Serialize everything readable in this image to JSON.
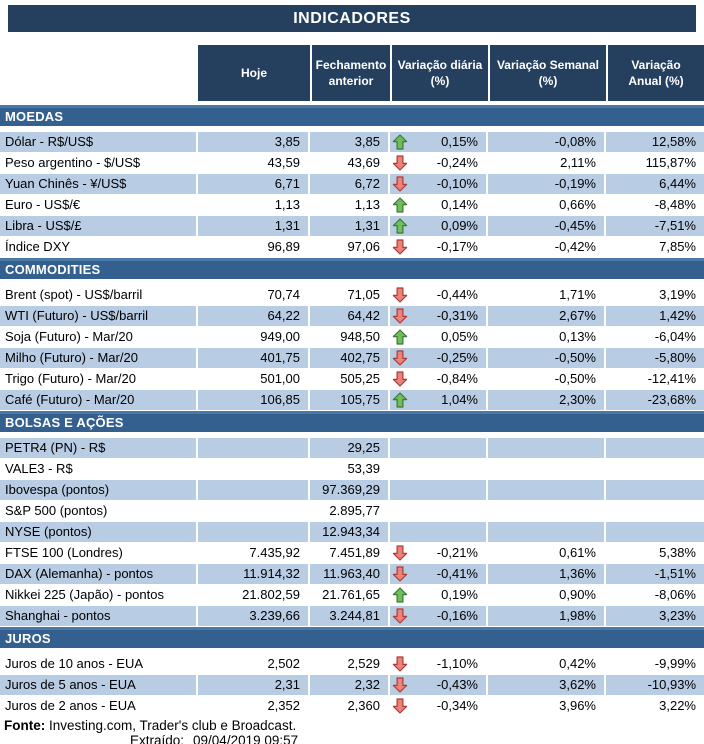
{
  "title": "INDICADORES",
  "columns": [
    "Hoje",
    "Fechamento anterior",
    "Variação diária (%)",
    "Variação Semanal (%)",
    "Variação Anual (%)"
  ],
  "sections": [
    {
      "name": "MOEDAS",
      "shaded_first": true,
      "rows": [
        {
          "label": "Dólar - R$/US$",
          "hoje": "3,85",
          "fechamento": "3,85",
          "arrow": "up",
          "diaria": "0,15%",
          "semanal": "-0,08%",
          "anual": "12,58%"
        },
        {
          "label": "Peso argentino - $/US$",
          "hoje": "43,59",
          "fechamento": "43,69",
          "arrow": "down",
          "diaria": "-0,24%",
          "semanal": "2,11%",
          "anual": "115,87%"
        },
        {
          "label": "Yuan Chinês - ¥/US$",
          "hoje": "6,71",
          "fechamento": "6,72",
          "arrow": "down",
          "diaria": "-0,10%",
          "semanal": "-0,19%",
          "anual": "6,44%"
        },
        {
          "label": "Euro - US$/€",
          "hoje": "1,13",
          "fechamento": "1,13",
          "arrow": "up",
          "diaria": "0,14%",
          "semanal": "0,66%",
          "anual": "-8,48%"
        },
        {
          "label": "Libra - US$/£",
          "hoje": "1,31",
          "fechamento": "1,31",
          "arrow": "up",
          "diaria": "0,09%",
          "semanal": "-0,45%",
          "anual": "-7,51%"
        },
        {
          "label": "Índice DXY",
          "hoje": "96,89",
          "fechamento": "97,06",
          "arrow": "down",
          "diaria": "-0,17%",
          "semanal": "-0,42%",
          "anual": "7,85%"
        }
      ]
    },
    {
      "name": "COMMODITIES",
      "shaded_first": false,
      "rows": [
        {
          "label": "Brent (spot) - US$/barril",
          "hoje": "70,74",
          "fechamento": "71,05",
          "arrow": "down",
          "diaria": "-0,44%",
          "semanal": "1,71%",
          "anual": "3,19%"
        },
        {
          "label": "WTI (Futuro) - US$/barril",
          "hoje": "64,22",
          "fechamento": "64,42",
          "arrow": "down",
          "diaria": "-0,31%",
          "semanal": "2,67%",
          "anual": "1,42%"
        },
        {
          "label": "Soja (Futuro) - Mar/20",
          "hoje": "949,00",
          "fechamento": "948,50",
          "arrow": "up",
          "diaria": "0,05%",
          "semanal": "0,13%",
          "anual": "-6,04%"
        },
        {
          "label": "Milho (Futuro) - Mar/20",
          "hoje": "401,75",
          "fechamento": "402,75",
          "arrow": "down",
          "diaria": "-0,25%",
          "semanal": "-0,50%",
          "anual": "-5,80%"
        },
        {
          "label": "Trigo (Futuro) - Mar/20",
          "hoje": "501,00",
          "fechamento": "505,25",
          "arrow": "down",
          "diaria": "-0,84%",
          "semanal": "-0,50%",
          "anual": "-12,41%"
        },
        {
          "label": "Café (Futuro) - Mar/20",
          "hoje": "106,85",
          "fechamento": "105,75",
          "arrow": "up",
          "diaria": "1,04%",
          "semanal": "2,30%",
          "anual": "-23,68%"
        }
      ]
    },
    {
      "name": "BOLSAS E AÇÕES",
      "shaded_first": true,
      "rows": [
        {
          "label": "PETR4 (PN) - R$",
          "hoje": "",
          "fechamento": "29,25",
          "arrow": null,
          "diaria": "",
          "semanal": "",
          "anual": ""
        },
        {
          "label": "VALE3 - R$",
          "hoje": "",
          "fechamento": "53,39",
          "arrow": null,
          "diaria": "",
          "semanal": "",
          "anual": ""
        },
        {
          "label": "Ibovespa (pontos)",
          "hoje": "",
          "fechamento": "97.369,29",
          "arrow": null,
          "diaria": "",
          "semanal": "",
          "anual": ""
        },
        {
          "label": "S&P 500 (pontos)",
          "hoje": "",
          "fechamento": "2.895,77",
          "arrow": null,
          "diaria": "",
          "semanal": "",
          "anual": ""
        },
        {
          "label": "NYSE (pontos)",
          "hoje": "",
          "fechamento": "12.943,34",
          "arrow": null,
          "diaria": "",
          "semanal": "",
          "anual": ""
        },
        {
          "label": "FTSE 100 (Londres)",
          "hoje": "7.435,92",
          "fechamento": "7.451,89",
          "arrow": "down",
          "diaria": "-0,21%",
          "semanal": "0,61%",
          "anual": "5,38%"
        },
        {
          "label": "DAX (Alemanha) - pontos",
          "hoje": "11.914,32",
          "fechamento": "11.963,40",
          "arrow": "down",
          "diaria": "-0,41%",
          "semanal": "1,36%",
          "anual": "-1,51%"
        },
        {
          "label": "Nikkei 225 (Japão) - pontos",
          "hoje": "21.802,59",
          "fechamento": "21.761,65",
          "arrow": "up",
          "diaria": "0,19%",
          "semanal": "0,90%",
          "anual": "-8,06%"
        },
        {
          "label": "Shanghai - pontos",
          "hoje": "3.239,66",
          "fechamento": "3.244,81",
          "arrow": "down",
          "diaria": "-0,16%",
          "semanal": "1,98%",
          "anual": "3,23%"
        }
      ]
    },
    {
      "name": "JUROS",
      "shaded_first": false,
      "rows": [
        {
          "label": "Juros de 10 anos - EUA",
          "hoje": "2,502",
          "fechamento": "2,529",
          "arrow": "down",
          "diaria": "-1,10%",
          "semanal": "0,42%",
          "anual": "-9,99%"
        },
        {
          "label": "Juros de 5 anos - EUA",
          "hoje": "2,31",
          "fechamento": "2,32",
          "arrow": "down",
          "diaria": "-0,43%",
          "semanal": "3,62%",
          "anual": "-10,93%"
        },
        {
          "label": "Juros de 2 anos - EUA",
          "hoje": "2,352",
          "fechamento": "2,360",
          "arrow": "down",
          "diaria": "-0,34%",
          "semanal": "3,96%",
          "anual": "3,22%"
        }
      ]
    }
  ],
  "footer": {
    "source_label": "Fonte:",
    "source_text": " Investing.com, Trader's club e Broadcast.",
    "extracted_label": "Extraído:",
    "extracted_value": "09/04/2019 09:57"
  },
  "colors": {
    "header_navy": "#24405E",
    "section_blue": "#33608E",
    "section_blue_top_edge": "#4A79A8",
    "row_shaded_blue": "#B8CCE4",
    "arrow_up_fill": "#70BE5B",
    "arrow_up_stroke": "#3A7A34",
    "arrow_down_fill": "#E9837B",
    "arrow_down_stroke": "#B03A33"
  }
}
